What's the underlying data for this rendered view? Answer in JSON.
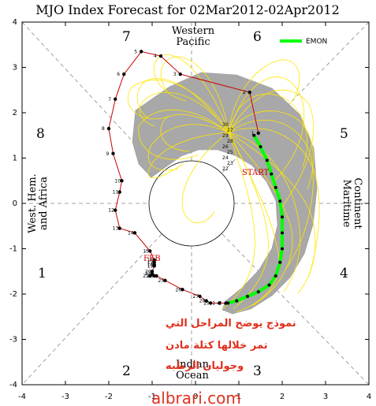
{
  "chart_data": {
    "type": "scatter",
    "title": "MJO Index Forecast for 02Mar2012-02Apr2012",
    "xlim": [
      -4,
      4
    ],
    "ylim": [
      -4,
      4
    ],
    "x_ticks": [
      "-4",
      "-3",
      "-2",
      "-1",
      "0",
      "1",
      "2",
      "3",
      "4"
    ],
    "y_ticks": [
      "-4",
      "-3",
      "-2",
      "-1",
      "0",
      "1",
      "2",
      "3",
      "4"
    ],
    "phase_numbers": [
      "1",
      "2",
      "3",
      "4",
      "5",
      "6",
      "7",
      "8"
    ],
    "regions": {
      "top_1": "Western",
      "top_2": "Pacific",
      "bottom_1": "Indian",
      "bottom_2": "Ocean",
      "left_1": "West. Hem.",
      "left_2": "and Africa",
      "right_1": "Maritime",
      "right_2": "Continent"
    },
    "legend": {
      "label": "EMON",
      "color": "#00ff00",
      "placement": "top-right"
    },
    "month_labels": {
      "feb": "FEB",
      "start": "START"
    },
    "observed": {
      "color": "#cc0000",
      "points": [
        {
          "d": "1",
          "x": 1.45,
          "y": 1.55
        },
        {
          "d": "2",
          "x": 1.25,
          "y": 2.45
        },
        {
          "d": "3",
          "x": -0.35,
          "y": 2.85
        },
        {
          "d": "4",
          "x": -0.8,
          "y": 3.25
        },
        {
          "d": "5",
          "x": -1.25,
          "y": 3.35
        },
        {
          "d": "6",
          "x": -1.65,
          "y": 2.85
        },
        {
          "d": "7",
          "x": -1.85,
          "y": 2.3
        },
        {
          "d": "8",
          "x": -2.0,
          "y": 1.65
        },
        {
          "d": "9",
          "x": -1.9,
          "y": 1.1
        },
        {
          "d": "10",
          "x": -1.7,
          "y": 0.5
        },
        {
          "d": "11",
          "x": -1.75,
          "y": 0.25
        },
        {
          "d": "12",
          "x": -1.85,
          "y": -0.15
        },
        {
          "d": "13",
          "x": -1.75,
          "y": -0.55
        },
        {
          "d": "14",
          "x": -1.4,
          "y": -0.65
        },
        {
          "d": "15",
          "x": -1.05,
          "y": -1.05
        },
        {
          "d": "16",
          "x": -0.95,
          "y": -1.25
        },
        {
          "d": "17",
          "x": -0.95,
          "y": -1.3
        },
        {
          "d": "18",
          "x": -0.95,
          "y": -1.35
        },
        {
          "d": "19",
          "x": -0.95,
          "y": -1.38
        },
        {
          "d": "20",
          "x": -1.0,
          "y": -1.5
        },
        {
          "d": "21",
          "x": -1.0,
          "y": -1.55
        },
        {
          "d": "22",
          "x": -1.05,
          "y": -1.6
        },
        {
          "d": "23",
          "x": -0.95,
          "y": -1.6
        },
        {
          "d": "24",
          "x": -0.9,
          "y": -1.6
        },
        {
          "d": "25",
          "x": -0.7,
          "y": -1.7
        },
        {
          "d": "26",
          "x": -0.3,
          "y": -1.9
        },
        {
          "d": "27",
          "x": 0.1,
          "y": -2.05
        },
        {
          "d": "28",
          "x": 0.25,
          "y": -2.15
        },
        {
          "d": "29",
          "x": 0.35,
          "y": -2.2
        },
        {
          "d": "1",
          "x": 0.55,
          "y": -2.2
        },
        {
          "d": "2",
          "x": 0.7,
          "y": -2.2
        }
      ]
    },
    "emon_mean": [
      [
        0.75,
        -2.2
      ],
      [
        0.95,
        -2.15
      ],
      [
        1.2,
        -2.05
      ],
      [
        1.45,
        -1.95
      ],
      [
        1.7,
        -1.8
      ],
      [
        1.85,
        -1.6
      ],
      [
        1.95,
        -1.3
      ],
      [
        2.0,
        -1.0
      ],
      [
        2.0,
        -0.65
      ],
      [
        2.0,
        -0.3
      ],
      [
        1.95,
        0.05
      ],
      [
        1.85,
        0.35
      ],
      [
        1.75,
        0.65
      ],
      [
        1.65,
        0.95
      ],
      [
        1.5,
        1.25
      ],
      [
        1.35,
        1.5
      ]
    ],
    "forecast_start_labels": [
      "30",
      "27",
      "29",
      "28",
      "26",
      "25",
      "24",
      "23",
      "22"
    ],
    "arabic_note": [
      "نموذج يوضح المراحل التي",
      "تمر خلالها كتلة مادن",
      "وجوليان الرطبه"
    ],
    "watermark": "albrari.com"
  }
}
